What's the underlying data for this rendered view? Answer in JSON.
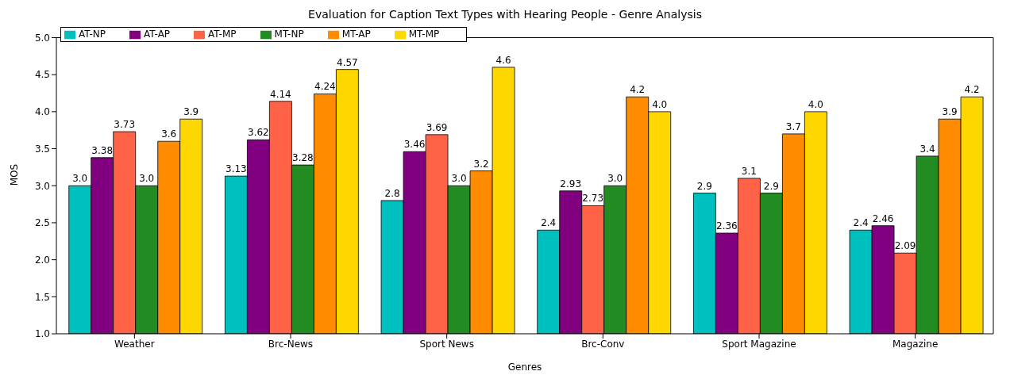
{
  "chart_data": {
    "type": "bar",
    "title": "Evaluation for Caption Text Types with Hearing People - Genre Analysis",
    "xlabel": "Genres",
    "ylabel": "MOS",
    "categories": [
      "Weather",
      "Brc-News",
      "Sport News",
      "Brc-Conv",
      "Sport Magazine",
      "Magazine"
    ],
    "series": [
      {
        "name": "AT-NP",
        "color": "#00bfbf",
        "values": [
          3.0,
          3.13,
          2.8,
          2.4,
          2.9,
          2.4
        ],
        "value_labels": [
          "3.0",
          "3.13",
          "2.8",
          "2.4",
          "2.9",
          "2.4"
        ]
      },
      {
        "name": "AT-AP",
        "color": "#800080",
        "values": [
          3.38,
          3.62,
          3.46,
          2.93,
          2.36,
          2.46
        ],
        "value_labels": [
          "3.38",
          "3.62",
          "3.46",
          "2.93",
          "2.36",
          "2.46"
        ]
      },
      {
        "name": "AT-MP",
        "color": "#ff6347",
        "values": [
          3.73,
          4.14,
          3.69,
          2.73,
          3.1,
          2.09
        ],
        "value_labels": [
          "3.73",
          "4.14",
          "3.69",
          "2.73",
          "3.1",
          "2.09"
        ]
      },
      {
        "name": "MT-NP",
        "color": "#228b22",
        "values": [
          3.0,
          3.28,
          3.0,
          3.0,
          2.9,
          3.4
        ],
        "value_labels": [
          "3.0",
          "3.28",
          "3.0",
          "3.0",
          "2.9",
          "3.4"
        ]
      },
      {
        "name": "MT-AP",
        "color": "#ff8c00",
        "values": [
          3.6,
          4.24,
          3.2,
          4.2,
          3.7,
          3.9
        ],
        "value_labels": [
          "3.6",
          "4.24",
          "3.2",
          "4.2",
          "3.7",
          "3.9"
        ]
      },
      {
        "name": "MT-MP",
        "color": "#ffd700",
        "values": [
          3.9,
          4.57,
          4.6,
          4.0,
          4.0,
          4.2
        ],
        "value_labels": [
          "3.9",
          "4.57",
          "4.6",
          "4.0",
          "4.0",
          "4.2"
        ]
      }
    ],
    "ylim": [
      1,
      5
    ],
    "yticks": [
      {
        "value": 1,
        "label": "1.0"
      },
      {
        "value": 1.5,
        "label": "1.5"
      },
      {
        "value": 2,
        "label": "2.0"
      },
      {
        "value": 2.5,
        "label": "2.5"
      },
      {
        "value": 3,
        "label": "3.0"
      },
      {
        "value": 3.5,
        "label": "3.5"
      },
      {
        "value": 4,
        "label": "4.0"
      },
      {
        "value": 4.5,
        "label": "4.5"
      },
      {
        "value": 5,
        "label": "5.0"
      }
    ],
    "grid": false,
    "legend": "top left"
  }
}
